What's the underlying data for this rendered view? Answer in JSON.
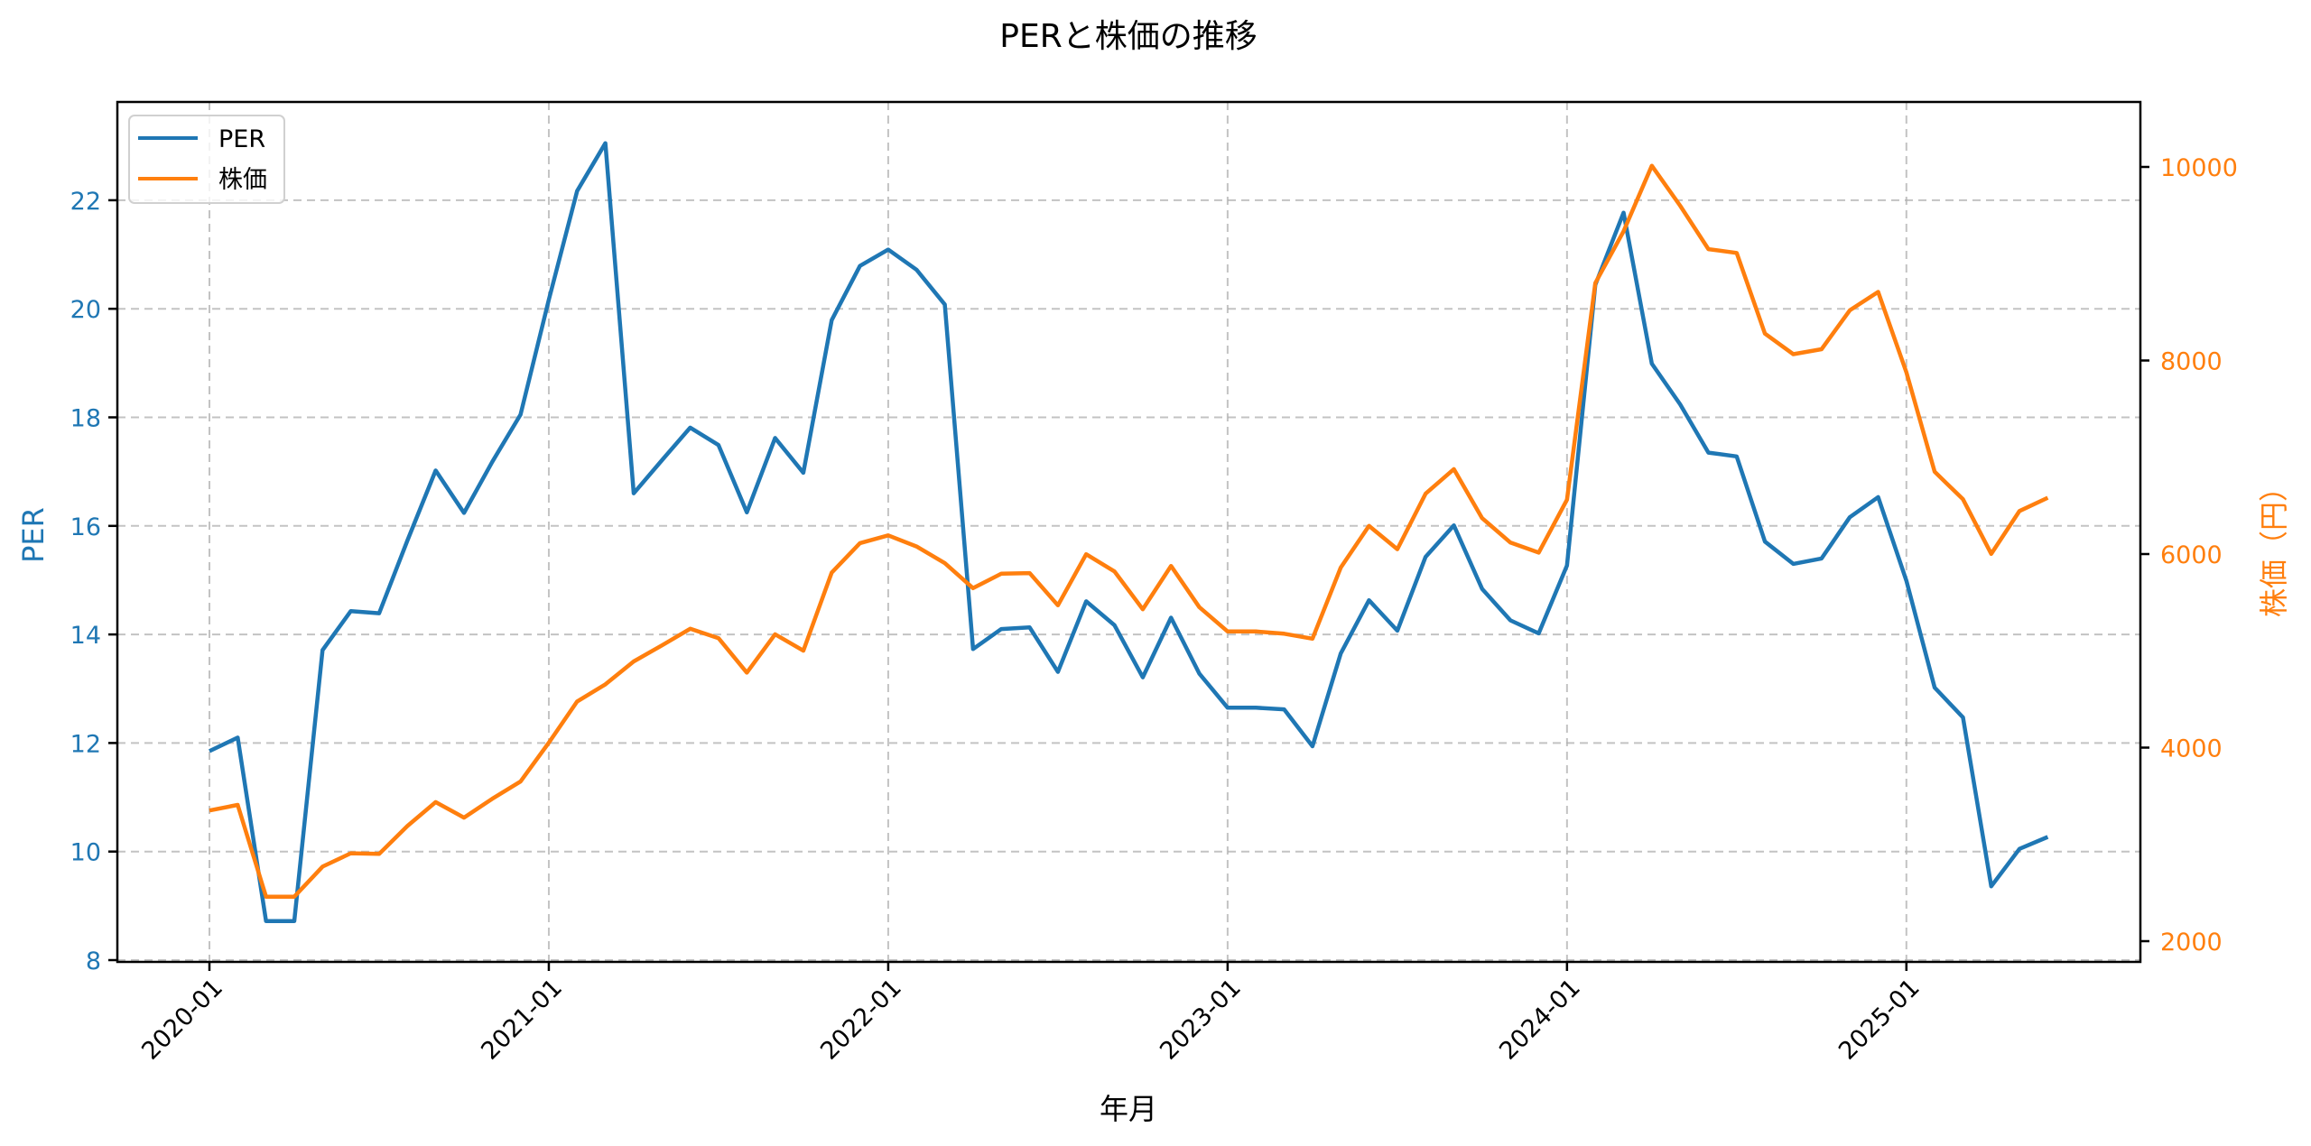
{
  "chart_data": {
    "type": "line",
    "title": "PERと株価の推移",
    "xlabel": "年月",
    "ylabel_left": "PER",
    "ylabel_right": "株価（円）",
    "x": [
      "2020-01",
      "2020-02",
      "2020-03",
      "2020-04",
      "2020-05",
      "2020-06",
      "2020-07",
      "2020-08",
      "2020-09",
      "2020-10",
      "2020-11",
      "2020-12",
      "2021-01",
      "2021-02",
      "2021-03",
      "2021-04",
      "2021-05",
      "2021-06",
      "2021-07",
      "2021-08",
      "2021-09",
      "2021-10",
      "2021-11",
      "2021-12",
      "2022-01",
      "2022-02",
      "2022-03",
      "2022-04",
      "2022-05",
      "2022-06",
      "2022-07",
      "2022-08",
      "2022-09",
      "2022-10",
      "2022-11",
      "2022-12",
      "2023-01",
      "2023-02",
      "2023-03",
      "2023-04",
      "2023-05",
      "2023-06",
      "2023-07",
      "2023-08",
      "2023-09",
      "2023-10",
      "2023-11",
      "2023-12",
      "2024-01",
      "2024-02",
      "2024-03",
      "2024-04",
      "2024-05",
      "2024-06",
      "2024-07",
      "2024-08",
      "2024-09",
      "2024-10",
      "2024-11",
      "2024-12",
      "2025-01",
      "2025-02",
      "2025-03",
      "2025-04",
      "2025-05",
      "2025-06"
    ],
    "x_tick_labels": [
      "2020-01",
      "2021-01",
      "2022-01",
      "2023-01",
      "2024-01",
      "2025-01"
    ],
    "series": [
      {
        "name": "PER",
        "axis": "left",
        "color": "#1f77b4",
        "values": [
          11.85,
          12.1,
          8.72,
          8.72,
          13.71,
          14.43,
          14.39,
          15.73,
          17.02,
          16.24,
          17.18,
          18.05,
          20.17,
          22.17,
          23.05,
          16.6,
          17.21,
          17.81,
          17.49,
          16.25,
          17.62,
          16.98,
          19.79,
          20.79,
          21.09,
          20.72,
          20.08,
          13.73,
          14.1,
          14.13,
          13.31,
          14.61,
          14.17,
          13.21,
          14.31,
          13.28,
          12.65,
          12.65,
          12.62,
          11.94,
          13.65,
          14.63,
          14.07,
          15.43,
          16.01,
          14.84,
          14.26,
          14.02,
          15.27,
          20.44,
          21.77,
          18.99,
          18.24,
          17.35,
          17.28,
          15.71,
          15.3,
          15.4,
          16.16,
          16.53,
          14.99,
          13.02,
          12.47,
          9.36,
          10.05,
          10.27
        ]
      },
      {
        "name": "株価",
        "axis": "right",
        "color": "#ff7f0e",
        "values": [
          3350,
          3408,
          2460,
          2460,
          2770,
          2908,
          2902,
          3190,
          3437,
          3276,
          3471,
          3649,
          4051,
          4476,
          4654,
          4890,
          5056,
          5228,
          5131,
          4775,
          5171,
          5001,
          5808,
          6113,
          6193,
          6078,
          5906,
          5648,
          5797,
          5803,
          5470,
          5998,
          5820,
          5429,
          5877,
          5452,
          5200,
          5200,
          5177,
          5125,
          5860,
          6291,
          6050,
          6624,
          6877,
          6371,
          6118,
          6015,
          6561,
          8800,
          9335,
          10012,
          9599,
          9151,
          9111,
          8278,
          8065,
          8117,
          8518,
          8709,
          7878,
          6850,
          6566,
          6002,
          6445,
          6582
        ]
      }
    ],
    "y_left": {
      "ticks": [
        8,
        10,
        12,
        14,
        16,
        18,
        20,
        22
      ],
      "range": [
        7.97,
        23.77
      ],
      "color": "#1f77b4"
    },
    "y_right": {
      "ticks": [
        2000,
        4000,
        6000,
        8000,
        10000
      ],
      "range": [
        1785,
        10785
      ],
      "color": "#ff7f0e"
    },
    "grid": true,
    "grid_style": "dashed",
    "legend_position": "upper left"
  },
  "legend": {
    "items": [
      {
        "label": "PER",
        "color": "#1f77b4"
      },
      {
        "label": "株価",
        "color": "#ff7f0e"
      }
    ]
  }
}
